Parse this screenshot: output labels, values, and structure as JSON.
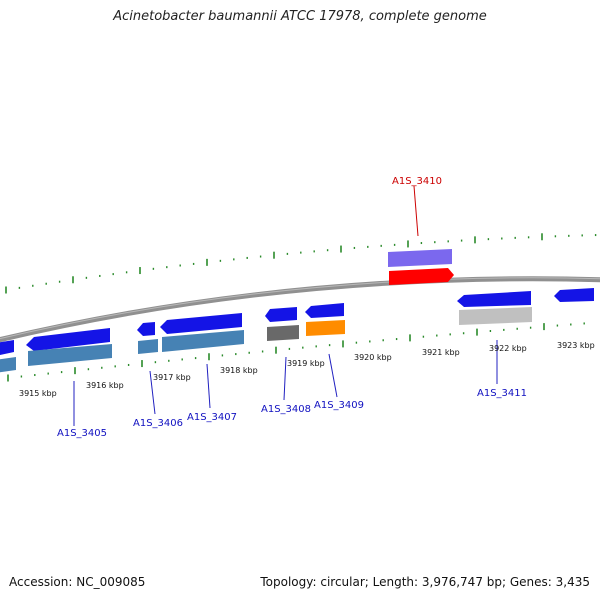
{
  "title": "Acinetobacter baumannii ATCC 17978, complete genome",
  "footer": {
    "accession": "Accession: NC_009085",
    "summary": "Topology: circular; Length: 3,976,747 bp; Genes: 3,435"
  },
  "scale_labels": [
    "3915 kbp",
    "3916 kbp",
    "3917 kbp",
    "3918 kbp",
    "3919 kbp",
    "3920 kbp",
    "3921 kbp",
    "3922 kbp",
    "3923 kbp"
  ],
  "gene_labels": [
    {
      "text": "A1S_3405",
      "color": "#1010c0"
    },
    {
      "text": "A1S_3406",
      "color": "#1010c0"
    },
    {
      "text": "A1S_3407",
      "color": "#1010c0"
    },
    {
      "text": "A1S_3408",
      "color": "#1010c0"
    },
    {
      "text": "A1S_3409",
      "color": "#1010c0"
    },
    {
      "text": "A1S_3410",
      "color": "#cc0000"
    },
    {
      "text": "A1S_3411",
      "color": "#1010c0"
    }
  ],
  "colors": {
    "backbone": "#808080",
    "tick": "#2a8a2a",
    "gene_blue": "#1414e6",
    "cog_steel": "#4682b4",
    "cog_gray": "#696969",
    "cog_orange": "#ff8c00",
    "cog_purple": "#7b68ee",
    "cog_red": "#ff0000",
    "cog_silver": "#c0c0c0"
  }
}
